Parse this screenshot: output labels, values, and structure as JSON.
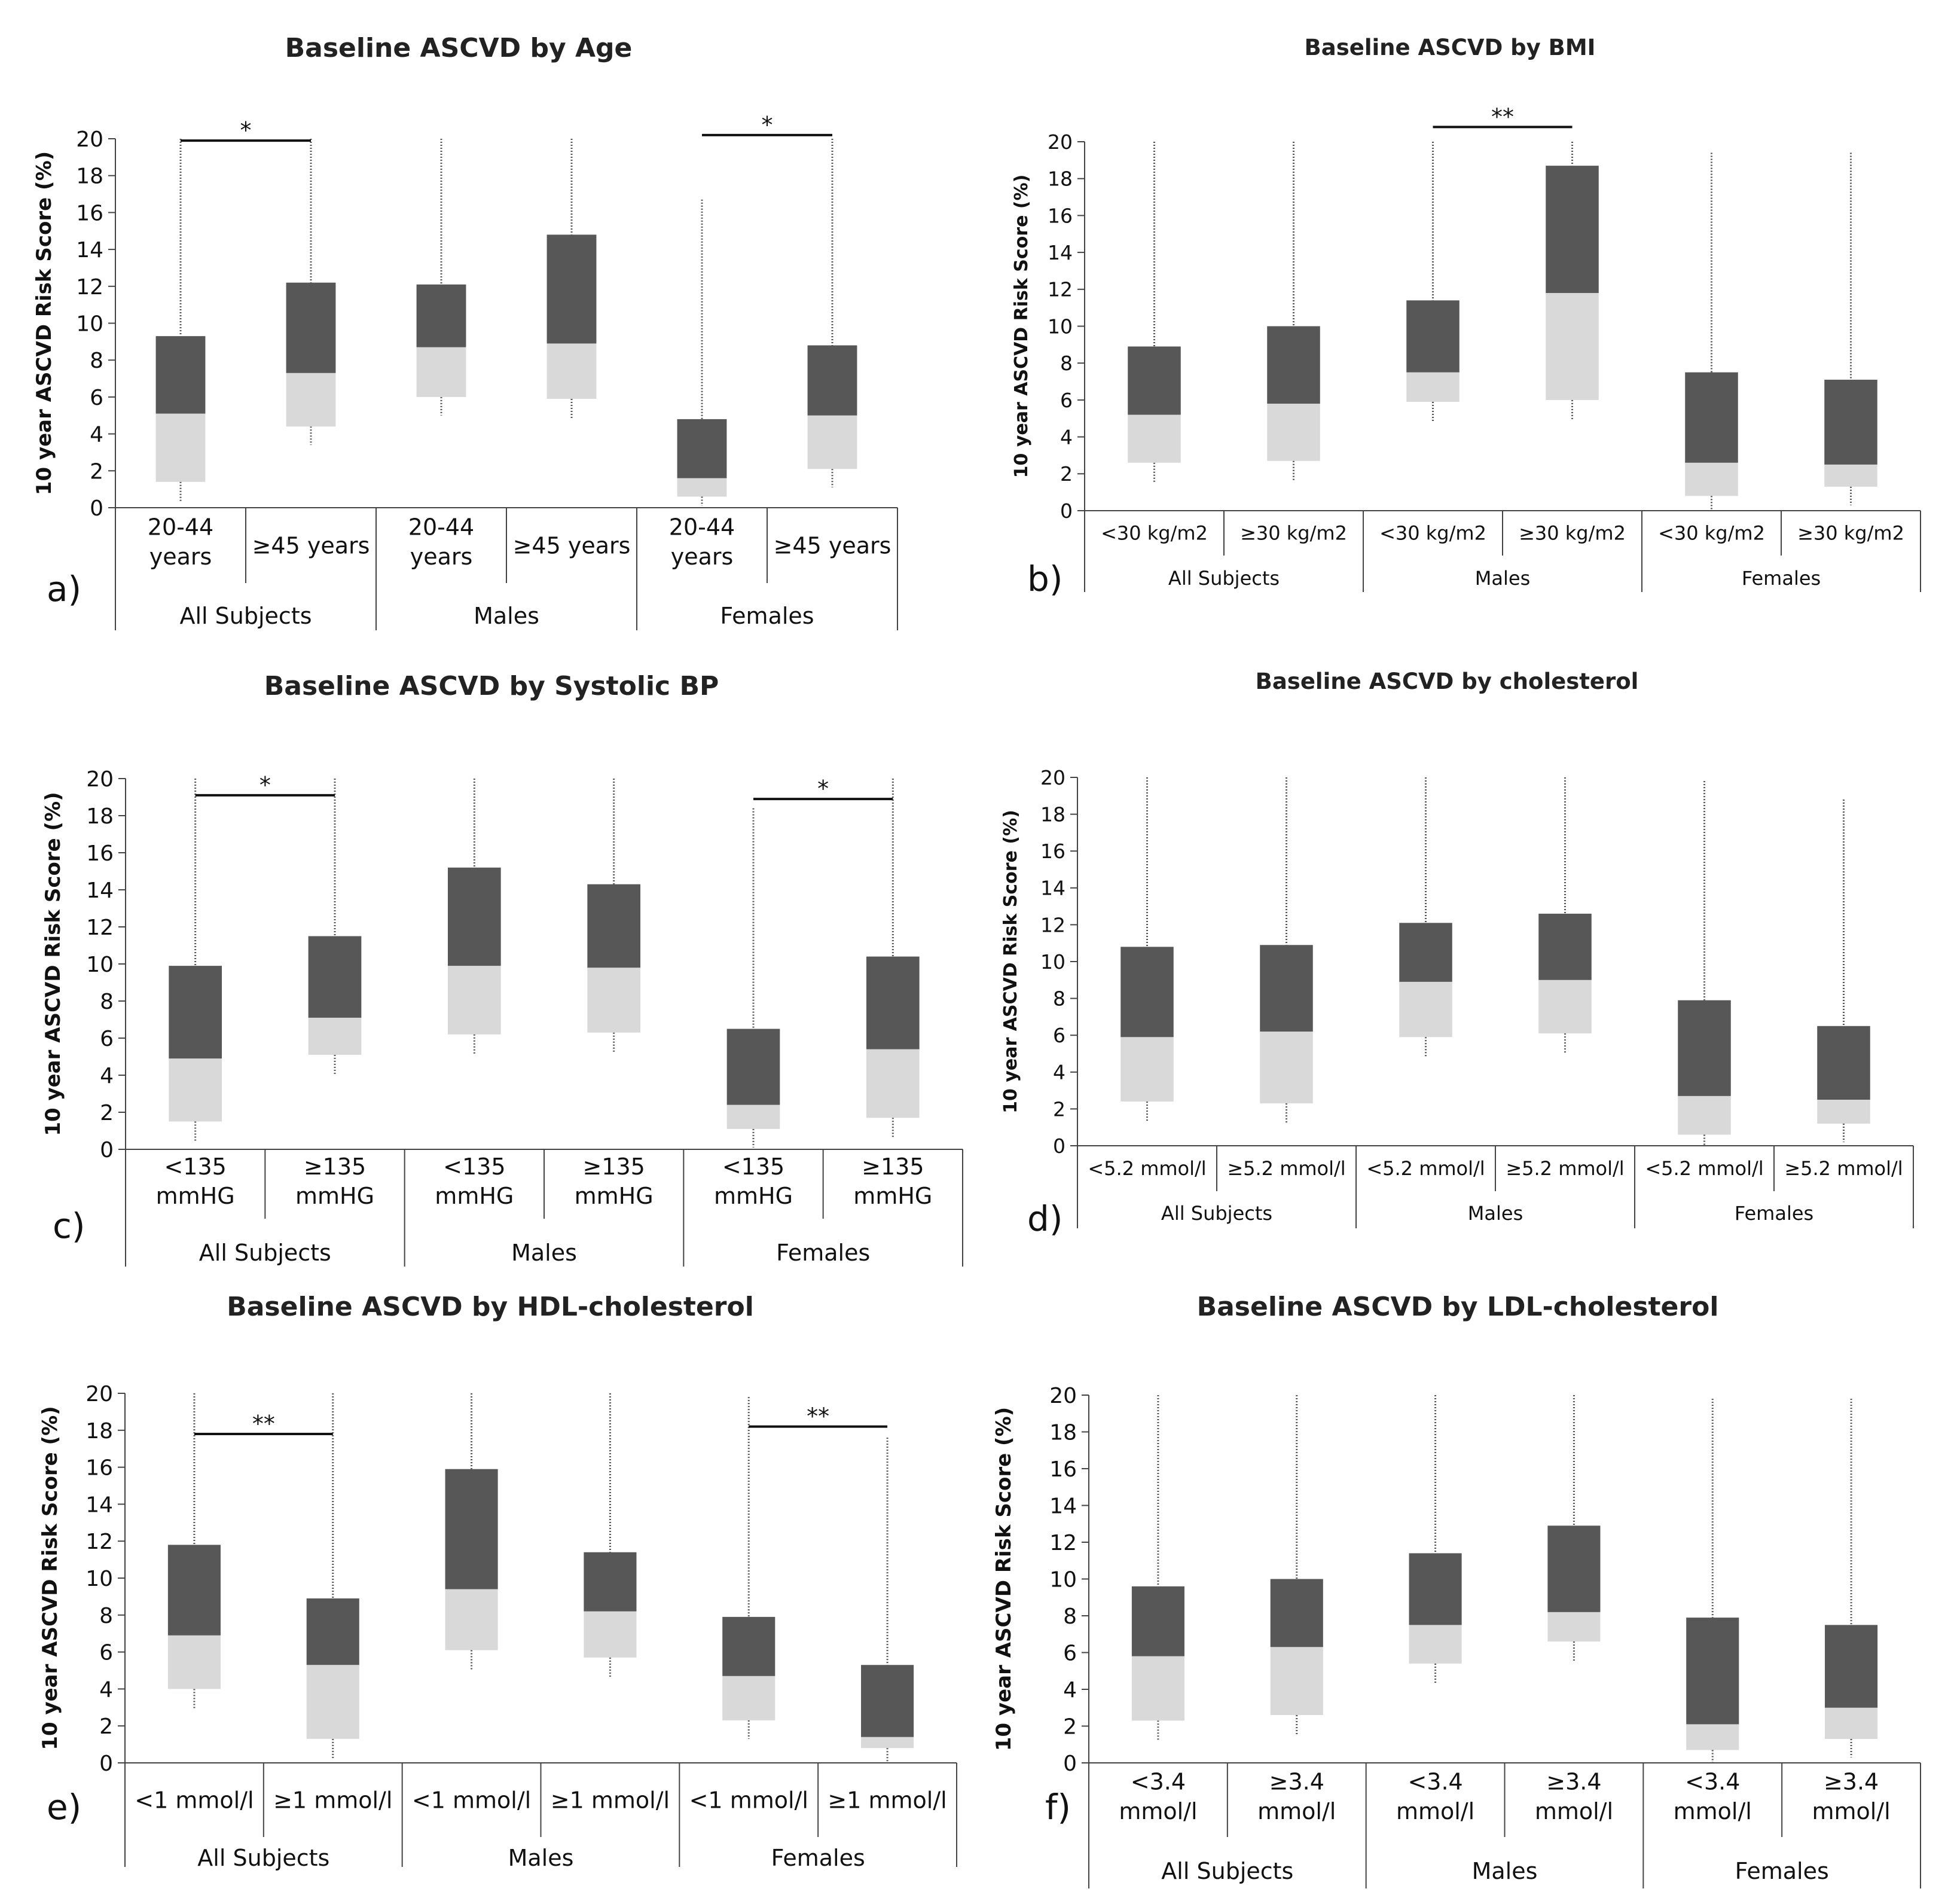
{
  "colors": {
    "upper_box": "#575757",
    "lower_box": "#d9d9d9",
    "axis": "#444444",
    "whisker": "#555555",
    "text": "#111111"
  },
  "chart_data": [
    {
      "type": "box",
      "panel": "a)",
      "title": "Baseline ASCVD by Age",
      "ylabel": "10 year ASCVD Risk Score (%)",
      "ylim": [
        0,
        20
      ],
      "yticks": [
        "0",
        "2",
        "4",
        "6",
        "8",
        "10",
        "12",
        "14",
        "16",
        "18",
        "20"
      ],
      "categories": [
        "20-44\nyears",
        "≥45 years",
        "20-44\nyears",
        "≥45 years",
        "20-44\nyears",
        "≥45 years"
      ],
      "groups": [
        "All Subjects",
        "Males",
        "Females"
      ],
      "boxes": [
        {
          "min": 0.3,
          "q1": 1.4,
          "median": 5.1,
          "q3": 9.3,
          "max": 20
        },
        {
          "min": 3.4,
          "q1": 4.4,
          "median": 7.3,
          "q3": 12.2,
          "max": 20
        },
        {
          "min": 5.0,
          "q1": 6.0,
          "median": 8.7,
          "q3": 12.1,
          "max": 20
        },
        {
          "min": 4.8,
          "q1": 5.9,
          "median": 8.9,
          "q3": 14.8,
          "max": 20
        },
        {
          "min": 0.1,
          "q1": 0.6,
          "median": 1.6,
          "q3": 4.8,
          "max": 16.7
        },
        {
          "min": 1.1,
          "q1": 2.1,
          "median": 5.0,
          "q3": 8.8,
          "max": 20
        }
      ],
      "significance": [
        {
          "from": 0,
          "to": 1,
          "y": 19.9,
          "label": "*"
        },
        {
          "from": 4,
          "to": 5,
          "y": 20.2,
          "label": "*"
        }
      ]
    },
    {
      "type": "box",
      "panel": "b)",
      "title": "Baseline ASCVD by BMI",
      "ylabel": "10 year ASCVD Risk Score (%)",
      "ylim": [
        0,
        20
      ],
      "yticks": [
        "0",
        "2",
        "4",
        "6",
        "8",
        "10",
        "12",
        "14",
        "16",
        "18",
        "20"
      ],
      "categories": [
        "<30 kg/m2",
        "≥30 kg/m2",
        "<30 kg/m2",
        "≥30 kg/m2",
        "<30 kg/m2",
        "≥30 kg/m2"
      ],
      "groups": [
        "All Subjects",
        "Males",
        "Females"
      ],
      "boxes": [
        {
          "min": 1.5,
          "q1": 2.6,
          "median": 5.2,
          "q3": 8.9,
          "max": 20
        },
        {
          "min": 1.6,
          "q1": 2.7,
          "median": 5.8,
          "q3": 10.0,
          "max": 20
        },
        {
          "min": 4.8,
          "q1": 5.9,
          "median": 7.5,
          "q3": 11.4,
          "max": 20
        },
        {
          "min": 4.9,
          "q1": 6.0,
          "median": 11.8,
          "q3": 18.7,
          "max": 20
        },
        {
          "min": 0.0,
          "q1": 0.8,
          "median": 2.6,
          "q3": 7.5,
          "max": 19.4
        },
        {
          "min": 0.3,
          "q1": 1.3,
          "median": 2.5,
          "q3": 7.1,
          "max": 19.4
        }
      ],
      "significance": [
        {
          "from": 2,
          "to": 3,
          "y": 20.8,
          "label": "**"
        }
      ]
    },
    {
      "type": "box",
      "panel": "c)",
      "title": "Baseline ASCVD by Systolic BP",
      "ylabel": "10 year ASCVD Risk Score (%)",
      "ylim": [
        0,
        20
      ],
      "yticks": [
        "0",
        "2",
        "4",
        "6",
        "8",
        "10",
        "12",
        "14",
        "16",
        "18",
        "20"
      ],
      "categories": [
        "<135\nmmHG",
        "≥135\nmmHG",
        "<135\nmmHG",
        "≥135\nmmHG",
        "<135\nmmHG",
        "≥135\nmmHG"
      ],
      "groups": [
        "All Subjects",
        "Males",
        "Females"
      ],
      "boxes": [
        {
          "min": 0.4,
          "q1": 1.5,
          "median": 4.9,
          "q3": 9.9,
          "max": 20
        },
        {
          "min": 4.0,
          "q1": 5.1,
          "median": 7.1,
          "q3": 11.5,
          "max": 20
        },
        {
          "min": 5.1,
          "q1": 6.2,
          "median": 9.9,
          "q3": 15.2,
          "max": 20
        },
        {
          "min": 5.2,
          "q1": 6.3,
          "median": 9.8,
          "q3": 14.3,
          "max": 20
        },
        {
          "min": 0.1,
          "q1": 1.1,
          "median": 2.4,
          "q3": 6.5,
          "max": 18.4
        },
        {
          "min": 0.6,
          "q1": 1.7,
          "median": 5.4,
          "q3": 10.4,
          "max": 20
        }
      ],
      "significance": [
        {
          "from": 0,
          "to": 1,
          "y": 19.1,
          "label": "*"
        },
        {
          "from": 4,
          "to": 5,
          "y": 18.9,
          "label": "*"
        }
      ]
    },
    {
      "type": "box",
      "panel": "d)",
      "title": "Baseline ASCVD by cholesterol",
      "ylabel": "10 year ASCVD Risk Score (%)",
      "ylim": [
        0,
        20
      ],
      "yticks": [
        "0",
        "2",
        "4",
        "6",
        "8",
        "10",
        "12",
        "14",
        "16",
        "18",
        "20"
      ],
      "categories": [
        "<5.2 mmol/l",
        "≥5.2 mmol/l",
        "<5.2 mmol/l",
        "≥5.2 mmol/l",
        "<5.2 mmol/l",
        "≥5.2 mmol/l"
      ],
      "groups": [
        "All Subjects",
        "Males",
        "Females"
      ],
      "boxes": [
        {
          "min": 1.3,
          "q1": 2.4,
          "median": 5.9,
          "q3": 10.8,
          "max": 20
        },
        {
          "min": 1.2,
          "q1": 2.3,
          "median": 6.2,
          "q3": 10.9,
          "max": 20
        },
        {
          "min": 4.8,
          "q1": 5.9,
          "median": 8.9,
          "q3": 12.1,
          "max": 20
        },
        {
          "min": 5.0,
          "q1": 6.1,
          "median": 9.0,
          "q3": 12.6,
          "max": 20
        },
        {
          "min": 0.0,
          "q1": 0.6,
          "median": 2.7,
          "q3": 7.9,
          "max": 19.8
        },
        {
          "min": 0.2,
          "q1": 1.2,
          "median": 2.5,
          "q3": 6.5,
          "max": 18.8
        }
      ],
      "significance": []
    },
    {
      "type": "box",
      "panel": "e)",
      "title": "Baseline ASCVD by HDL-cholesterol",
      "ylabel": "10 year ASCVD Risk Score (%)",
      "ylim": [
        0,
        20
      ],
      "yticks": [
        "0",
        "2",
        "4",
        "6",
        "8",
        "10",
        "12",
        "14",
        "16",
        "18",
        "20"
      ],
      "categories": [
        "<1 mmol/l",
        "≥1 mmol/l",
        "<1 mmol/l",
        "≥1 mmol/l",
        "<1 mmol/l",
        "≥1 mmol/l"
      ],
      "groups": [
        "All Subjects",
        "Males",
        "Females"
      ],
      "boxes": [
        {
          "min": 2.9,
          "q1": 4.0,
          "median": 6.9,
          "q3": 11.8,
          "max": 20
        },
        {
          "min": 0.2,
          "q1": 1.3,
          "median": 5.3,
          "q3": 8.9,
          "max": 20
        },
        {
          "min": 5.0,
          "q1": 6.1,
          "median": 9.4,
          "q3": 15.9,
          "max": 20
        },
        {
          "min": 4.6,
          "q1": 5.7,
          "median": 8.2,
          "q3": 11.4,
          "max": 20
        },
        {
          "min": 1.3,
          "q1": 2.3,
          "median": 4.7,
          "q3": 7.9,
          "max": 19.8
        },
        {
          "min": 0.0,
          "q1": 0.8,
          "median": 1.4,
          "q3": 5.3,
          "max": 17.6
        }
      ],
      "significance": [
        {
          "from": 0,
          "to": 1,
          "y": 17.8,
          "label": "**"
        },
        {
          "from": 4,
          "to": 5,
          "y": 18.2,
          "label": "**"
        }
      ]
    },
    {
      "type": "box",
      "panel": "f)",
      "title": "Baseline ASCVD by LDL-cholesterol",
      "ylabel": "10 year ASCVD Risk Score (%)",
      "ylim": [
        0,
        20
      ],
      "yticks": [
        "0",
        "2",
        "4",
        "6",
        "8",
        "10",
        "12",
        "14",
        "16",
        "18",
        "20"
      ],
      "categories": [
        "<3.4\nmmol/l",
        "≥3.4\nmmol/l",
        "<3.4\nmmol/l",
        "≥3.4\nmmol/l",
        "<3.4\nmmol/l",
        "≥3.4\nmmol/l"
      ],
      "groups": [
        "All Subjects",
        "Males",
        "Females"
      ],
      "boxes": [
        {
          "min": 1.2,
          "q1": 2.3,
          "median": 5.8,
          "q3": 9.6,
          "max": 20
        },
        {
          "min": 1.5,
          "q1": 2.6,
          "median": 6.3,
          "q3": 10.0,
          "max": 20
        },
        {
          "min": 4.3,
          "q1": 5.4,
          "median": 7.5,
          "q3": 11.4,
          "max": 20
        },
        {
          "min": 5.5,
          "q1": 6.6,
          "median": 8.2,
          "q3": 12.9,
          "max": 20
        },
        {
          "min": 0.0,
          "q1": 0.7,
          "median": 2.1,
          "q3": 7.9,
          "max": 19.8
        },
        {
          "min": 0.3,
          "q1": 1.3,
          "median": 3.0,
          "q3": 7.5,
          "max": 19.8
        }
      ],
      "significance": []
    }
  ]
}
